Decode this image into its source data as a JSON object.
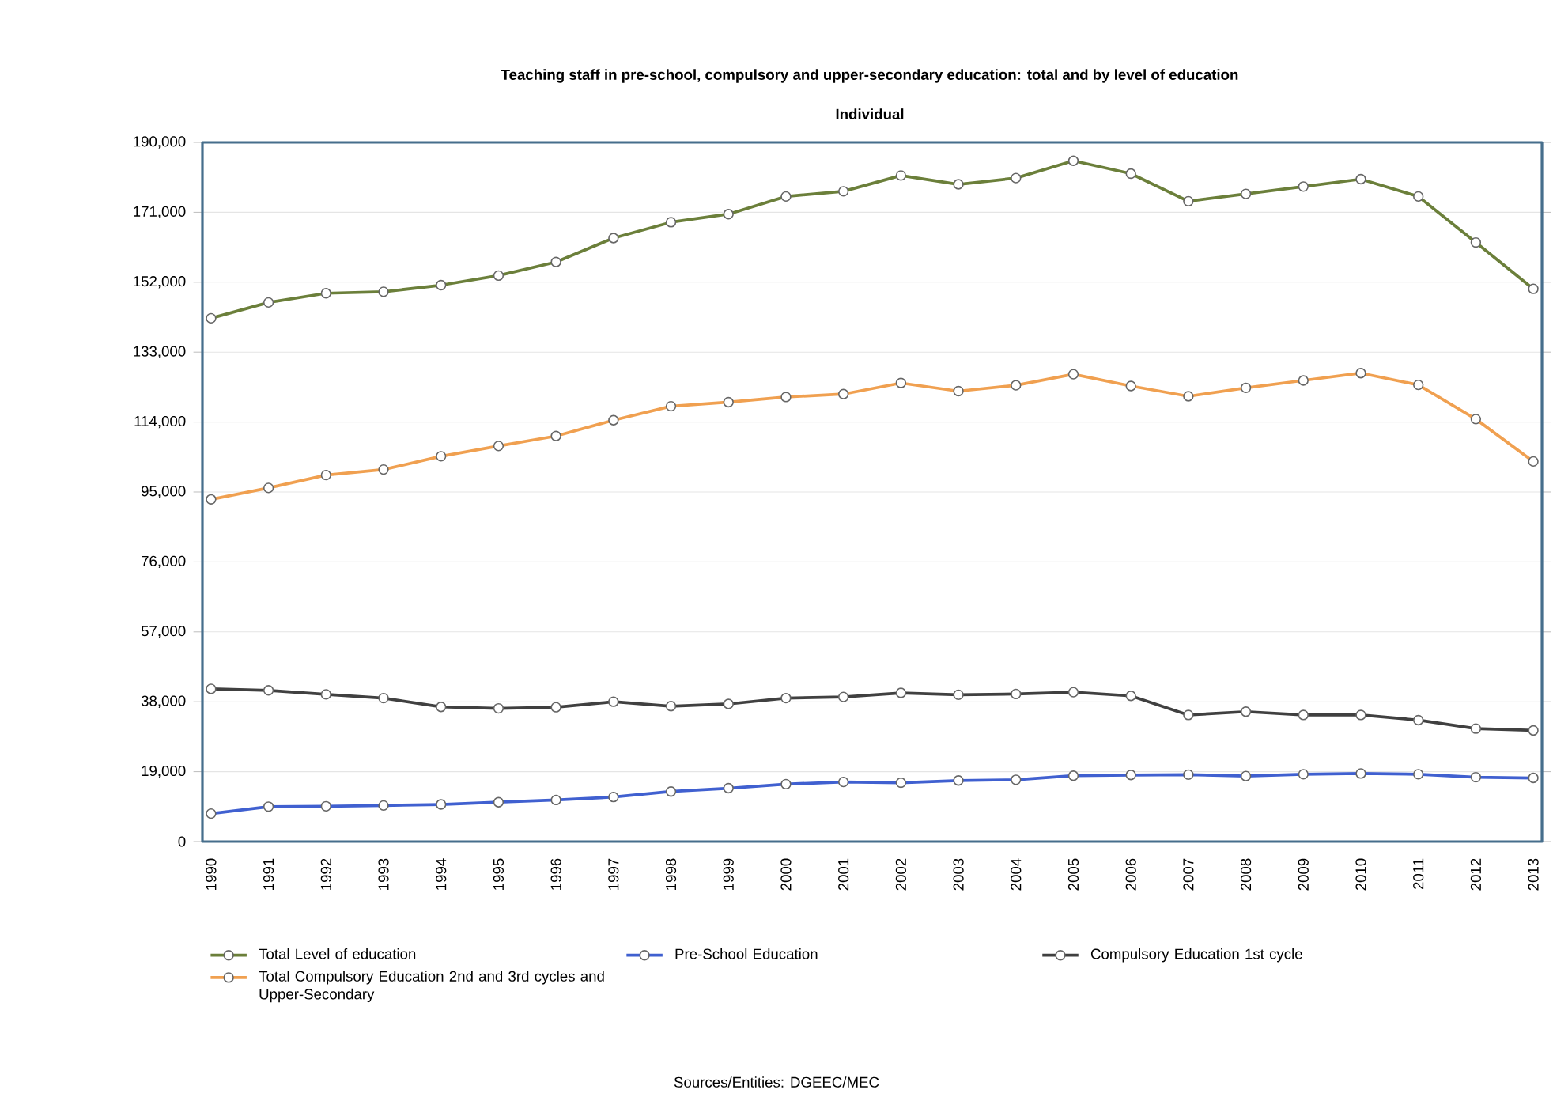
{
  "chart_data": {
    "type": "line",
    "title": "Teaching staff in pre-school, compulsory and upper-secondary education: total and by level of education",
    "subtitle": "Individual",
    "categories": [
      "1990",
      "1991",
      "1992",
      "1993",
      "1994",
      "1995",
      "1996",
      "1997",
      "1998",
      "1999",
      "2000",
      "2001",
      "2002",
      "2003",
      "2004",
      "2005",
      "2006",
      "2007",
      "2008",
      "2009",
      "2010",
      "2011",
      "2012",
      "2013"
    ],
    "series": [
      {
        "name": "Total Level of education",
        "color": "#6b7f3a",
        "values": [
          142200,
          146500,
          149000,
          149400,
          151200,
          153800,
          157500,
          164000,
          168300,
          170500,
          175300,
          176700,
          181000,
          178600,
          180300,
          185000,
          181500,
          174000,
          176000,
          178000,
          180000,
          175300,
          162800,
          150200
        ]
      },
      {
        "name": "Pre-School Education",
        "color": "#4060d0",
        "values": [
          7600,
          9500,
          9600,
          9800,
          10100,
          10700,
          11300,
          12100,
          13600,
          14500,
          15600,
          16200,
          16000,
          16600,
          16800,
          17900,
          18100,
          18200,
          17800,
          18300,
          18500,
          18300,
          17500,
          17300
        ]
      },
      {
        "name": "Compulsory Education 1st cycle",
        "color": "#404040",
        "values": [
          41500,
          41100,
          40000,
          39000,
          36600,
          36200,
          36500,
          38000,
          36800,
          37400,
          39000,
          39300,
          40400,
          39900,
          40100,
          40600,
          39600,
          34400,
          35300,
          34400,
          34400,
          33000,
          30700,
          30200
        ]
      },
      {
        "name": "Total Compulsory Education 2nd and 3rd cycles and Upper-Secondary",
        "color": "#f0a050",
        "values": [
          93000,
          96100,
          99600,
          101100,
          104700,
          107500,
          110200,
          114500,
          118300,
          119400,
          120800,
          121600,
          124600,
          122400,
          124000,
          127000,
          123800,
          121000,
          123300,
          125300,
          127300,
          124100,
          114800,
          103300
        ]
      }
    ],
    "ylim": [
      0,
      190000
    ],
    "yticks": [
      0,
      {
        "value": 19000,
        "label": "19,000"
      },
      {
        "value": 38000,
        "label": "38,000"
      },
      {
        "value": 57000,
        "label": "57,000"
      },
      {
        "value": 76000,
        "label": "76,000"
      },
      {
        "value": 95000,
        "label": "95,000"
      },
      {
        "value": 114000,
        "label": "114,000"
      },
      {
        "value": 133000,
        "label": "133,000"
      },
      {
        "value": 152000,
        "label": "152,000"
      },
      {
        "value": 171000,
        "label": "171,000"
      },
      {
        "value": 190000,
        "label": "190,000"
      }
    ],
    "grid": "y",
    "legend": "bottom",
    "marker": "circle",
    "annotations": [
      "Sources/Entities: DGEEC/MEC"
    ]
  }
}
